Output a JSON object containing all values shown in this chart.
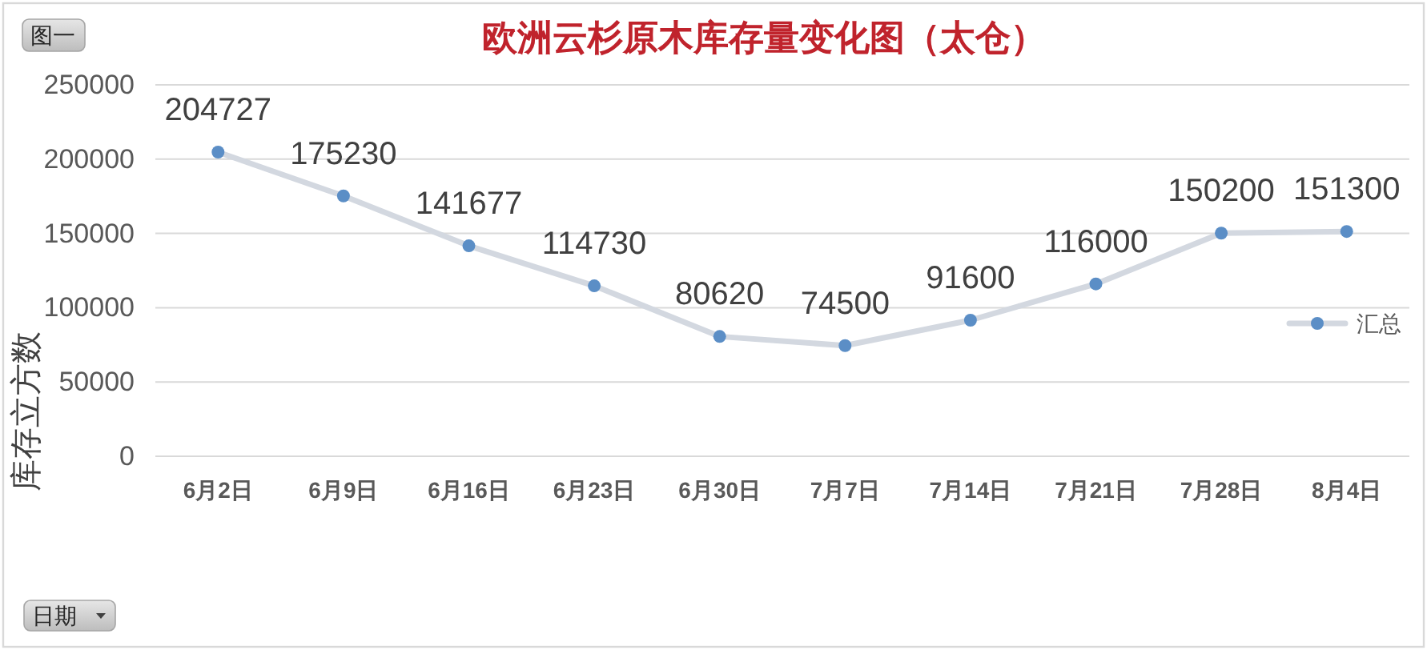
{
  "chart_data": {
    "type": "line",
    "title": "欧洲云杉原木库存量变化图（太仓）",
    "ylabel": "库存立方数",
    "categories": [
      "6月2日",
      "6月9日",
      "6月16日",
      "6月23日",
      "6月30日",
      "7月7日",
      "7月14日",
      "7月21日",
      "7月28日",
      "8月4日"
    ],
    "series": [
      {
        "name": "汇总",
        "color": "#d3d8e0",
        "colors": [
          "#5b8ec6",
          "#5b8ec6",
          "#5b8ec6",
          "#5b8ec6",
          "#5b8ec6",
          "#5b8ec6",
          "#5b8ec6",
          "#5b8ec6",
          "#5b8ec6",
          "#5b8ec6"
        ],
        "values": [
          204727,
          175230,
          141677,
          114730,
          80620,
          74500,
          91600,
          116000,
          150200,
          151300
        ]
      }
    ],
    "ylim": [
      0,
      250000
    ],
    "yticks": [
      0,
      50000,
      100000,
      150000,
      200000,
      250000
    ],
    "grid": "y",
    "legend": "right",
    "marker": "circle",
    "line_style": "solid",
    "data_labels": true,
    "annotations": [
      "图一",
      "日期"
    ]
  }
}
